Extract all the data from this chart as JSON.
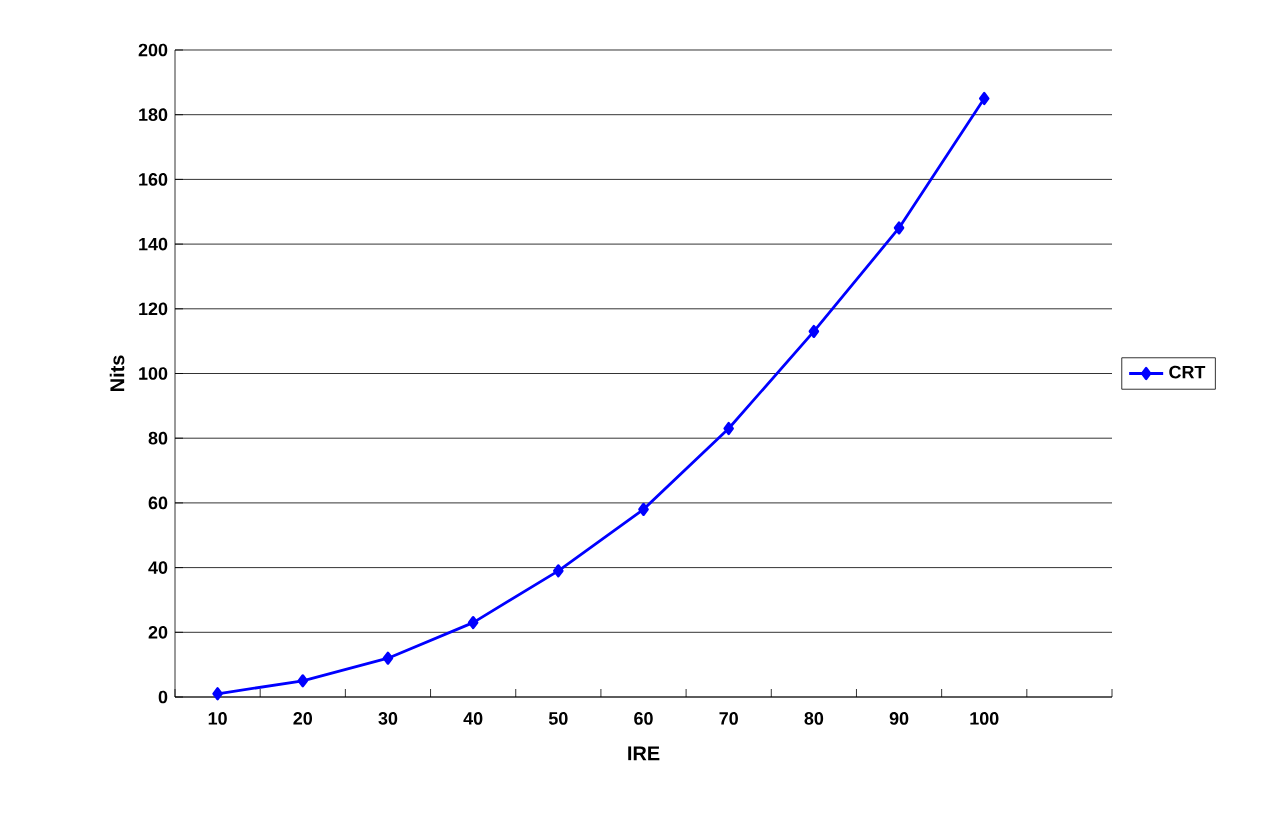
{
  "chart_data": {
    "type": "line",
    "xlabel": "IRE",
    "ylabel": "Nits",
    "categories": [
      "10",
      "20",
      "30",
      "40",
      "50",
      "60",
      "70",
      "80",
      "90",
      "100",
      null
    ],
    "series": [
      {
        "name": "CRT",
        "color": "#0000ff",
        "values": [
          1,
          5,
          12,
          23,
          39,
          58,
          83,
          113,
          145,
          185,
          null
        ]
      }
    ],
    "ylim": [
      0,
      200
    ],
    "yticks": [
      0,
      20,
      40,
      60,
      80,
      100,
      120,
      140,
      160,
      180,
      200
    ],
    "grid": "y",
    "legend": "right",
    "marker": "diamond",
    "line_style": "solid"
  }
}
